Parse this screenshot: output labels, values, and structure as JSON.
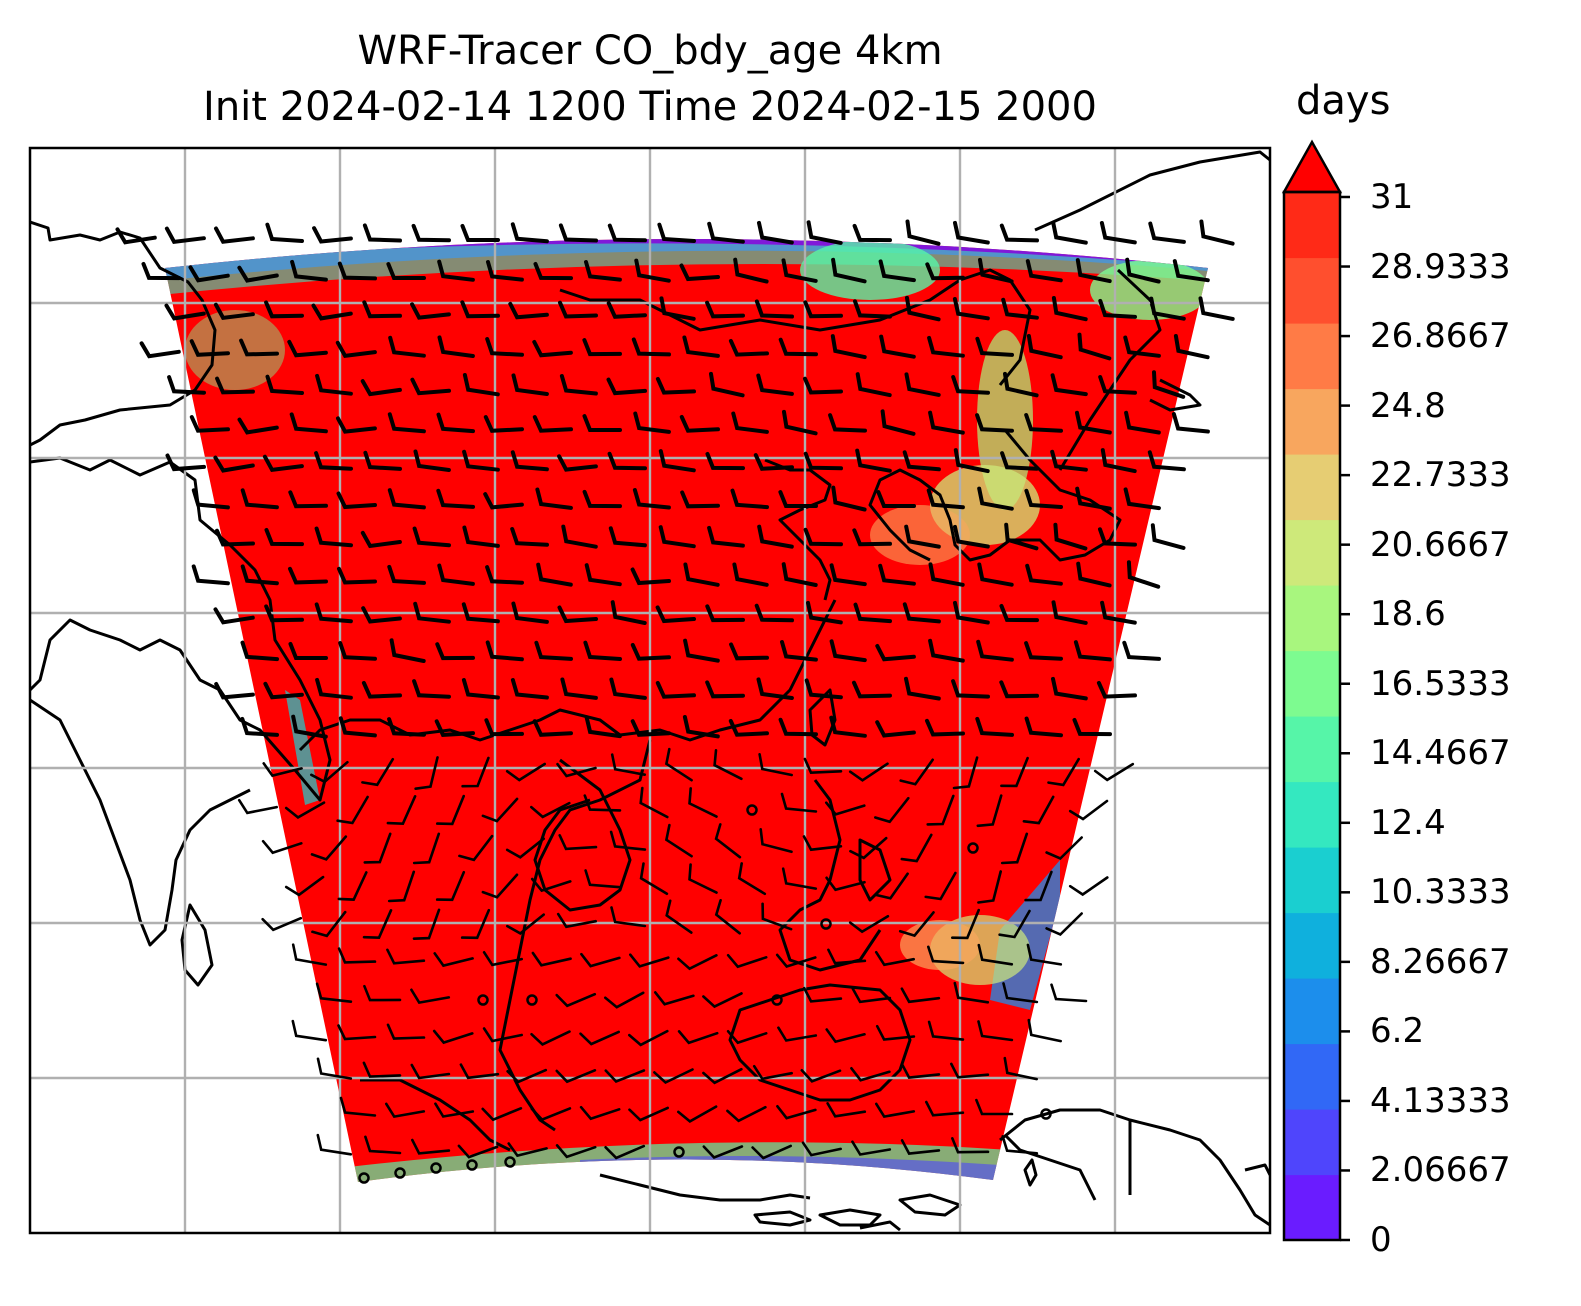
{
  "title_line1": "WRF-Tracer CO_bdy_age 4km",
  "title_line2": "Init 2024-02-14 1200 Time 2024-02-15 2000",
  "colorbar": {
    "label": "days",
    "ticks": [
      "31",
      "28.9333",
      "26.8667",
      "24.8",
      "22.7333",
      "20.6667",
      "18.6",
      "16.5333",
      "14.4667",
      "12.4",
      "10.3333",
      "8.26667",
      "6.2",
      "4.13333",
      "2.06667",
      "0"
    ],
    "colors": [
      "#6a1cff",
      "#4f45fc",
      "#3168f6",
      "#1c8eec",
      "#0fb0dd",
      "#1acfd0",
      "#34e8c0",
      "#56f5a8",
      "#7dfb90",
      "#a8f67e",
      "#cee97a",
      "#e6cd73",
      "#f8a65e",
      "#ff7b46",
      "#ff4f2e",
      "#ff2a17",
      "#ff0000"
    ]
  },
  "chart_data": {
    "type": "heatmap",
    "variable": "CO_bdy_age",
    "units": "days",
    "value_range": [
      0,
      31
    ],
    "dominant_value": 31,
    "overlays": [
      "coastlines",
      "country borders",
      "lat/lon gridlines",
      "wind barbs"
    ]
  }
}
